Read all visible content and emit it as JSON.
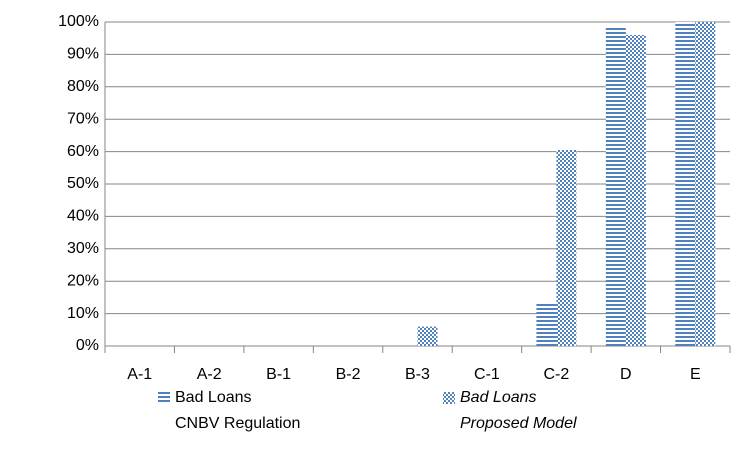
{
  "chart_data": {
    "type": "bar",
    "categories": [
      "A-1",
      "A-2",
      "B-1",
      "B-2",
      "B-3",
      "C-1",
      "C-2",
      "D",
      "E"
    ],
    "series": [
      {
        "name": "Bad Loans\nCNBV Regulation",
        "color": "#4f81bd",
        "pattern": "horizontal-stripes",
        "values": [
          0,
          0,
          0,
          0,
          0,
          0,
          13.5,
          98.5,
          100
        ]
      },
      {
        "name": "Bad Loans\nProposed Model",
        "color": "#4f81bd",
        "pattern": "checker",
        "italic": true,
        "values": [
          0,
          0,
          0,
          0,
          6,
          0,
          60.5,
          96,
          100
        ]
      }
    ],
    "ylim": [
      0,
      100
    ],
    "yticks": [
      {
        "value": 0,
        "label": "0%"
      },
      {
        "value": 10,
        "label": "10%"
      },
      {
        "value": 20,
        "label": "20%"
      },
      {
        "value": 30,
        "label": "30%"
      },
      {
        "value": 40,
        "label": "40%"
      },
      {
        "value": 50,
        "label": "50%"
      },
      {
        "value": 60,
        "label": "60%"
      },
      {
        "value": 70,
        "label": "70%"
      },
      {
        "value": 80,
        "label": "80%"
      },
      {
        "value": 90,
        "label": "90%"
      },
      {
        "value": 100,
        "label": "100%"
      }
    ],
    "grid": true,
    "legend": "bottom"
  }
}
